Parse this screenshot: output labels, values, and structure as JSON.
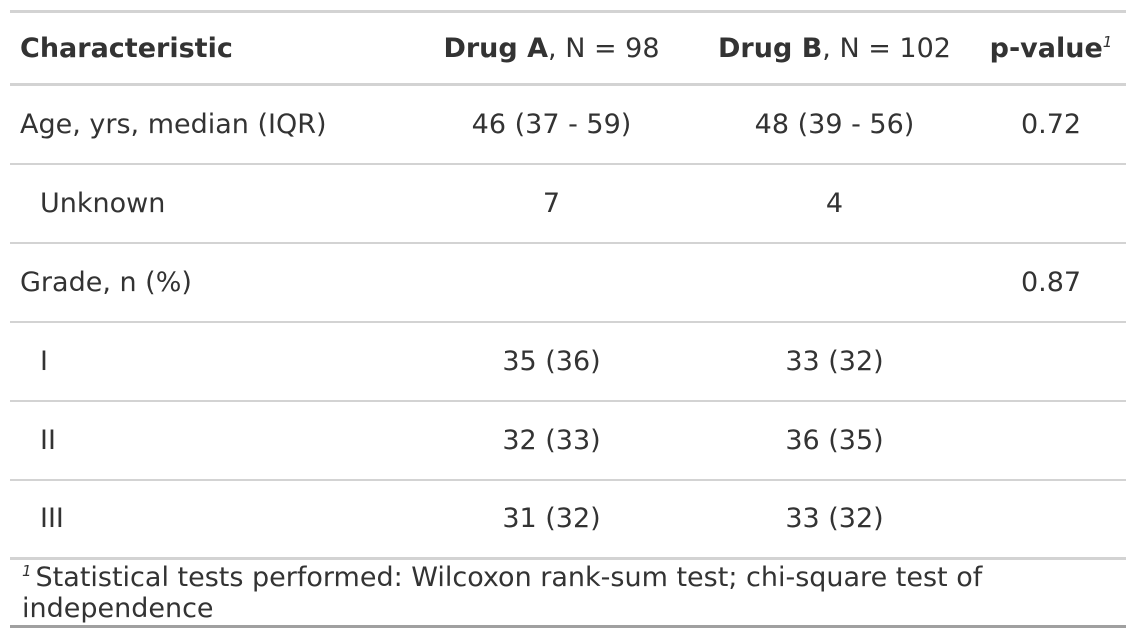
{
  "table": {
    "header": {
      "characteristic": "Characteristic",
      "drug_a": {
        "name": "Drug A",
        "suffix": ", N = 98"
      },
      "drug_b": {
        "name": "Drug B",
        "suffix": ", N = 102"
      },
      "pvalue": {
        "label": "p-value",
        "footnote_mark": "1"
      }
    },
    "rows": [
      {
        "label": "Age, yrs, median (IQR)",
        "drug_a": "46 (37 - 59)",
        "drug_b": "48 (39 - 56)",
        "pvalue": "0.72"
      },
      {
        "label": "Unknown",
        "drug_a": "7",
        "drug_b": "4",
        "pvalue": ""
      },
      {
        "label": "Grade, n (%)",
        "drug_a": "",
        "drug_b": "",
        "pvalue": "0.87"
      },
      {
        "label": "I",
        "drug_a": "35 (36)",
        "drug_b": "33 (32)",
        "pvalue": ""
      },
      {
        "label": "II",
        "drug_a": "32 (33)",
        "drug_b": "36 (35)",
        "pvalue": ""
      },
      {
        "label": "III",
        "drug_a": "31 (32)",
        "drug_b": "33 (32)",
        "pvalue": ""
      }
    ],
    "footnote": {
      "mark": "1",
      "text": "Statistical tests performed: Wilcoxon rank-sum test; chi-square test of independence"
    }
  }
}
